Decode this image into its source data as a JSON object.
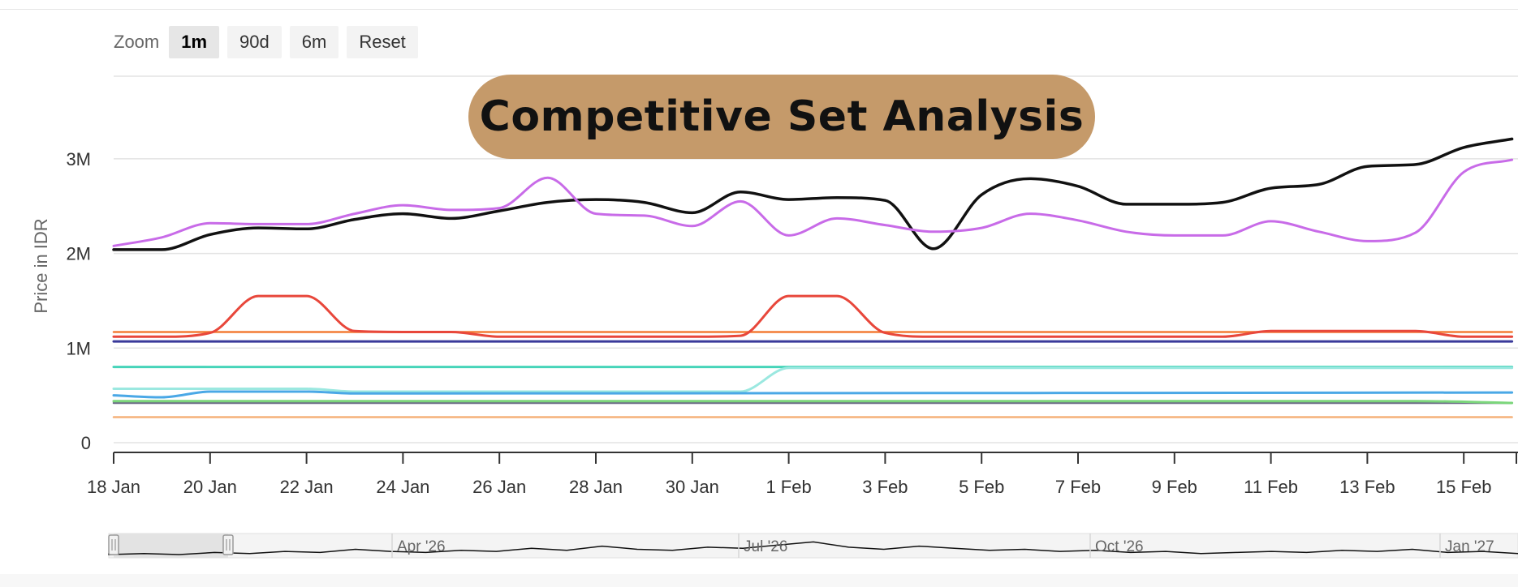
{
  "title": "Competitive Set Analysis",
  "zoom": {
    "label": "Zoom",
    "buttons": [
      {
        "label": "1m",
        "active": true
      },
      {
        "label": "90d",
        "active": false
      },
      {
        "label": "6m",
        "active": false
      },
      {
        "label": "Reset",
        "active": false
      }
    ]
  },
  "chart_data": {
    "type": "line",
    "ylabel": "Price in IDR",
    "ylim": [
      0,
      3000000
    ],
    "yticks": [
      {
        "value": 0,
        "label": "0"
      },
      {
        "value": 1000000,
        "label": "1M"
      },
      {
        "value": 2000000,
        "label": "2M"
      },
      {
        "value": 3000000,
        "label": "3M"
      }
    ],
    "x_start": "2026-01-18",
    "x_end": "2026-02-16",
    "xticks": [
      {
        "date": "2026-01-18",
        "label": "18 Jan"
      },
      {
        "date": "2026-01-20",
        "label": "20 Jan"
      },
      {
        "date": "2026-01-22",
        "label": "22 Jan"
      },
      {
        "date": "2026-01-24",
        "label": "24 Jan"
      },
      {
        "date": "2026-01-26",
        "label": "26 Jan"
      },
      {
        "date": "2026-01-28",
        "label": "28 Jan"
      },
      {
        "date": "2026-01-30",
        "label": "30 Jan"
      },
      {
        "date": "2026-02-01",
        "label": "1 Feb"
      },
      {
        "date": "2026-02-03",
        "label": "3 Feb"
      },
      {
        "date": "2026-02-05",
        "label": "5 Feb"
      },
      {
        "date": "2026-02-07",
        "label": "7 Feb"
      },
      {
        "date": "2026-02-09",
        "label": "9 Feb"
      },
      {
        "date": "2026-02-11",
        "label": "11 Feb"
      },
      {
        "date": "2026-02-13",
        "label": "13 Feb"
      },
      {
        "date": "2026-02-15",
        "label": "15 Feb"
      }
    ],
    "grid": true,
    "legend": "none",
    "series": [
      {
        "color": "#111111",
        "width": 3.5,
        "points": [
          [
            "2026-01-18",
            2040000
          ],
          [
            "2026-01-19",
            2040000
          ],
          [
            "2026-01-20",
            2200000
          ],
          [
            "2026-01-21",
            2270000
          ],
          [
            "2026-01-22",
            2260000
          ],
          [
            "2026-01-23",
            2360000
          ],
          [
            "2026-01-24",
            2420000
          ],
          [
            "2026-01-25",
            2370000
          ],
          [
            "2026-01-26",
            2450000
          ],
          [
            "2026-01-27",
            2540000
          ],
          [
            "2026-01-28",
            2570000
          ],
          [
            "2026-01-29",
            2540000
          ],
          [
            "2026-01-30",
            2430000
          ],
          [
            "2026-01-31",
            2650000
          ],
          [
            "2026-02-01",
            2570000
          ],
          [
            "2026-02-02",
            2590000
          ],
          [
            "2026-02-03",
            2560000
          ],
          [
            "2026-02-04",
            2050000
          ],
          [
            "2026-02-05",
            2620000
          ],
          [
            "2026-02-06",
            2790000
          ],
          [
            "2026-02-07",
            2710000
          ],
          [
            "2026-02-08",
            2520000
          ],
          [
            "2026-02-09",
            2520000
          ],
          [
            "2026-02-10",
            2540000
          ],
          [
            "2026-02-11",
            2690000
          ],
          [
            "2026-02-12",
            2730000
          ],
          [
            "2026-02-13",
            2920000
          ],
          [
            "2026-02-14",
            2940000
          ],
          [
            "2026-02-15",
            3120000
          ],
          [
            "2026-02-16",
            3210000
          ]
        ]
      },
      {
        "color": "#c86be8",
        "width": 3,
        "points": [
          [
            "2026-01-18",
            2080000
          ],
          [
            "2026-01-19",
            2170000
          ],
          [
            "2026-01-20",
            2320000
          ],
          [
            "2026-01-21",
            2310000
          ],
          [
            "2026-01-22",
            2310000
          ],
          [
            "2026-01-23",
            2420000
          ],
          [
            "2026-01-24",
            2510000
          ],
          [
            "2026-01-25",
            2460000
          ],
          [
            "2026-01-26",
            2480000
          ],
          [
            "2026-01-27",
            2800000
          ],
          [
            "2026-01-28",
            2420000
          ],
          [
            "2026-01-29",
            2400000
          ],
          [
            "2026-01-30",
            2290000
          ],
          [
            "2026-01-31",
            2550000
          ],
          [
            "2026-02-01",
            2190000
          ],
          [
            "2026-02-02",
            2370000
          ],
          [
            "2026-02-03",
            2300000
          ],
          [
            "2026-02-04",
            2230000
          ],
          [
            "2026-02-05",
            2270000
          ],
          [
            "2026-02-06",
            2420000
          ],
          [
            "2026-02-07",
            2350000
          ],
          [
            "2026-02-08",
            2230000
          ],
          [
            "2026-02-09",
            2190000
          ],
          [
            "2026-02-10",
            2190000
          ],
          [
            "2026-02-11",
            2340000
          ],
          [
            "2026-02-12",
            2230000
          ],
          [
            "2026-02-13",
            2130000
          ],
          [
            "2026-02-14",
            2220000
          ],
          [
            "2026-02-15",
            2860000
          ],
          [
            "2026-02-16",
            2990000
          ]
        ]
      },
      {
        "color": "#e8473b",
        "width": 3,
        "points": [
          [
            "2026-01-18",
            1120000
          ],
          [
            "2026-01-19",
            1120000
          ],
          [
            "2026-01-20",
            1160000
          ],
          [
            "2026-01-21",
            1550000
          ],
          [
            "2026-01-22",
            1550000
          ],
          [
            "2026-01-23",
            1180000
          ],
          [
            "2026-01-24",
            1170000
          ],
          [
            "2026-01-25",
            1170000
          ],
          [
            "2026-01-26",
            1120000
          ],
          [
            "2026-01-27",
            1120000
          ],
          [
            "2026-01-28",
            1120000
          ],
          [
            "2026-01-29",
            1120000
          ],
          [
            "2026-01-30",
            1120000
          ],
          [
            "2026-01-31",
            1130000
          ],
          [
            "2026-02-01",
            1550000
          ],
          [
            "2026-02-02",
            1550000
          ],
          [
            "2026-02-03",
            1160000
          ],
          [
            "2026-02-04",
            1120000
          ],
          [
            "2026-02-05",
            1120000
          ],
          [
            "2026-02-06",
            1120000
          ],
          [
            "2026-02-07",
            1120000
          ],
          [
            "2026-02-08",
            1120000
          ],
          [
            "2026-02-09",
            1120000
          ],
          [
            "2026-02-10",
            1120000
          ],
          [
            "2026-02-11",
            1180000
          ],
          [
            "2026-02-12",
            1180000
          ],
          [
            "2026-02-13",
            1180000
          ],
          [
            "2026-02-14",
            1180000
          ],
          [
            "2026-02-15",
            1120000
          ],
          [
            "2026-02-16",
            1120000
          ]
        ]
      },
      {
        "color": "#f47b35",
        "width": 2.5,
        "points": [
          [
            "2026-01-18",
            1170000
          ],
          [
            "2026-02-16",
            1170000
          ]
        ]
      },
      {
        "color": "#3a3a9a",
        "width": 3,
        "points": [
          [
            "2026-01-18",
            1070000
          ],
          [
            "2026-02-16",
            1070000
          ]
        ]
      },
      {
        "color": "#46d4b9",
        "width": 3,
        "points": [
          [
            "2026-01-18",
            800000
          ],
          [
            "2026-02-16",
            800000
          ]
        ]
      },
      {
        "color": "#9be8e0",
        "width": 3,
        "points": [
          [
            "2026-01-18",
            570000
          ],
          [
            "2026-01-22",
            570000
          ],
          [
            "2026-01-23",
            540000
          ],
          [
            "2026-01-31",
            540000
          ],
          [
            "2026-02-01",
            790000
          ],
          [
            "2026-02-16",
            790000
          ]
        ]
      },
      {
        "color": "#4aa8e6",
        "width": 3,
        "points": [
          [
            "2026-01-18",
            500000
          ],
          [
            "2026-01-19",
            480000
          ],
          [
            "2026-01-20",
            540000
          ],
          [
            "2026-01-22",
            540000
          ],
          [
            "2026-01-23",
            520000
          ],
          [
            "2026-02-16",
            530000
          ]
        ]
      },
      {
        "color": "#7bd67b",
        "width": 3,
        "points": [
          [
            "2026-01-18",
            440000
          ],
          [
            "2026-02-14",
            440000
          ],
          [
            "2026-02-16",
            420000
          ]
        ]
      },
      {
        "color": "#6c6c88",
        "width": 2.5,
        "points": [
          [
            "2026-01-18",
            420000
          ],
          [
            "2026-02-16",
            420000
          ]
        ]
      },
      {
        "color": "#f5b27a",
        "width": 2.5,
        "points": [
          [
            "2026-01-18",
            270000
          ],
          [
            "2026-02-16",
            270000
          ]
        ]
      }
    ],
    "navigator": {
      "labels": [
        "Apr '26",
        "Jul '26",
        "Oct '26",
        "Jan '27"
      ]
    }
  }
}
